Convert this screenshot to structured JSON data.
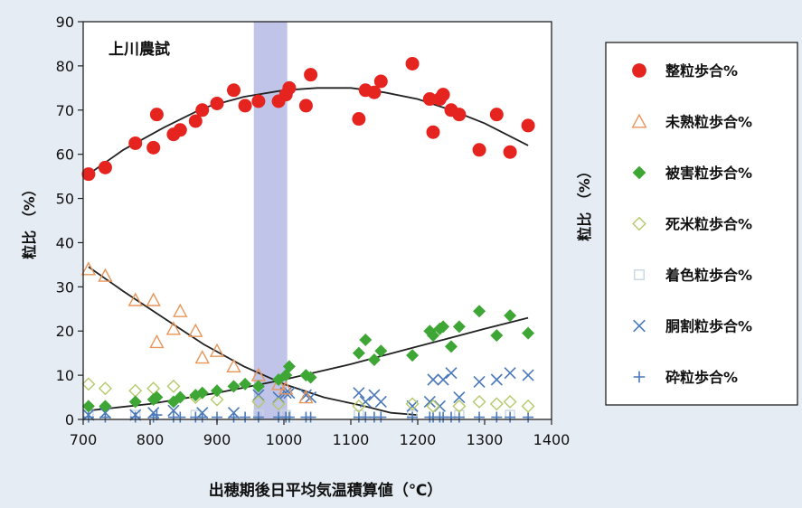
{
  "chart_data": {
    "type": "scatter",
    "annotation": "上川農試",
    "xlabel": "出穂期後日平均気温積算値（℃）",
    "ylabel_left": "粒比 （%）",
    "ylabel_right": "粒比 （%）",
    "xlim": [
      700,
      1400
    ],
    "ylim": [
      0,
      90
    ],
    "xticks": [
      "700",
      "800",
      "900",
      "1000",
      "1100",
      "1200",
      "1300",
      "1400"
    ],
    "yticks": [
      "0",
      "10",
      "20",
      "30",
      "40",
      "50",
      "60",
      "70",
      "80",
      "90"
    ],
    "highlight_band": [
      955,
      1005
    ],
    "grid": false,
    "legend_position": "right",
    "series": [
      {
        "name": "整粒歩合%",
        "marker": "circle-filled",
        "color": "#e52420",
        "points": [
          [
            708,
            55.5
          ],
          [
            733,
            57
          ],
          [
            778,
            62.5
          ],
          [
            805,
            61.5
          ],
          [
            810,
            69
          ],
          [
            835,
            64.5
          ],
          [
            845,
            65.5
          ],
          [
            868,
            67.5
          ],
          [
            878,
            70
          ],
          [
            900,
            71.5
          ],
          [
            925,
            74.5
          ],
          [
            942,
            71
          ],
          [
            962,
            72
          ],
          [
            992,
            72
          ],
          [
            1003,
            73.5
          ],
          [
            1008,
            75
          ],
          [
            1033,
            71
          ],
          [
            1040,
            78
          ],
          [
            1112,
            68
          ],
          [
            1122,
            74.5
          ],
          [
            1135,
            74
          ],
          [
            1145,
            76.5
          ],
          [
            1192,
            80.5
          ],
          [
            1218,
            72.5
          ],
          [
            1223,
            65
          ],
          [
            1233,
            72.5
          ],
          [
            1238,
            73.5
          ],
          [
            1250,
            70
          ],
          [
            1262,
            69
          ],
          [
            1292,
            61
          ],
          [
            1318,
            69
          ],
          [
            1338,
            60.5
          ],
          [
            1365,
            66.5
          ]
        ]
      },
      {
        "name": "未熟粒歩合%",
        "marker": "triangle-open",
        "color": "#e8955a",
        "points": [
          [
            708,
            34
          ],
          [
            733,
            32.5
          ],
          [
            778,
            27
          ],
          [
            805,
            27
          ],
          [
            810,
            17.5
          ],
          [
            835,
            20.5
          ],
          [
            845,
            24.5
          ],
          [
            868,
            20
          ],
          [
            878,
            14
          ],
          [
            900,
            15.5
          ],
          [
            925,
            12
          ],
          [
            962,
            10
          ],
          [
            992,
            8
          ],
          [
            1003,
            7
          ],
          [
            1033,
            5
          ]
        ]
      },
      {
        "name": "被害粒歩合%",
        "marker": "diamond-filled",
        "color": "#3ea635",
        "points": [
          [
            708,
            3
          ],
          [
            733,
            3
          ],
          [
            778,
            4
          ],
          [
            805,
            4.5
          ],
          [
            810,
            5
          ],
          [
            835,
            4
          ],
          [
            845,
            5
          ],
          [
            868,
            5.5
          ],
          [
            878,
            6
          ],
          [
            900,
            6.5
          ],
          [
            925,
            7.5
          ],
          [
            942,
            8
          ],
          [
            962,
            7.5
          ],
          [
            992,
            9
          ],
          [
            1003,
            10
          ],
          [
            1008,
            12
          ],
          [
            1033,
            10
          ],
          [
            1040,
            9.5
          ],
          [
            1112,
            15
          ],
          [
            1122,
            18
          ],
          [
            1135,
            13.5
          ],
          [
            1145,
            15.5
          ],
          [
            1192,
            14.5
          ],
          [
            1218,
            20
          ],
          [
            1223,
            19
          ],
          [
            1233,
            20.5
          ],
          [
            1238,
            21
          ],
          [
            1250,
            16.5
          ],
          [
            1262,
            21
          ],
          [
            1292,
            24.5
          ],
          [
            1318,
            19
          ],
          [
            1338,
            23.5
          ],
          [
            1365,
            19.5
          ]
        ]
      },
      {
        "name": "死米粒歩合%",
        "marker": "diamond-open",
        "color": "#b5c96a",
        "points": [
          [
            708,
            8
          ],
          [
            733,
            7
          ],
          [
            778,
            6.5
          ],
          [
            805,
            7
          ],
          [
            835,
            7.5
          ],
          [
            868,
            5
          ],
          [
            900,
            4.5
          ],
          [
            962,
            4
          ],
          [
            992,
            3.5
          ],
          [
            1112,
            3
          ],
          [
            1192,
            3.5
          ],
          [
            1223,
            3
          ],
          [
            1262,
            3
          ],
          [
            1292,
            4
          ],
          [
            1318,
            3.5
          ],
          [
            1338,
            4
          ],
          [
            1365,
            3
          ]
        ]
      },
      {
        "name": "着色粒歩合%",
        "marker": "square-open",
        "color": "#c9d6e2",
        "points": [
          [
            708,
            1
          ],
          [
            778,
            1
          ],
          [
            868,
            1
          ],
          [
            962,
            1
          ],
          [
            1003,
            1
          ],
          [
            1112,
            1
          ],
          [
            1192,
            1
          ],
          [
            1262,
            1
          ],
          [
            1338,
            1
          ]
        ]
      },
      {
        "name": "胴割粒歩合%",
        "marker": "x",
        "color": "#4a78b8",
        "points": [
          [
            708,
            1
          ],
          [
            733,
            1.5
          ],
          [
            778,
            1
          ],
          [
            805,
            1.5
          ],
          [
            835,
            2
          ],
          [
            878,
            1.5
          ],
          [
            925,
            1.5
          ],
          [
            962,
            5.5
          ],
          [
            992,
            5
          ],
          [
            1003,
            6
          ],
          [
            1008,
            6
          ],
          [
            1033,
            5.5
          ],
          [
            1040,
            5
          ],
          [
            1112,
            6
          ],
          [
            1122,
            4
          ],
          [
            1135,
            5.5
          ],
          [
            1145,
            4
          ],
          [
            1192,
            3
          ],
          [
            1218,
            4
          ],
          [
            1223,
            9
          ],
          [
            1233,
            3
          ],
          [
            1238,
            9
          ],
          [
            1250,
            10.5
          ],
          [
            1262,
            5
          ],
          [
            1292,
            8.5
          ],
          [
            1318,
            9
          ],
          [
            1338,
            10.5
          ],
          [
            1365,
            10
          ]
        ]
      },
      {
        "name": "砕粒歩合%",
        "marker": "plus",
        "color": "#4a78b8",
        "points": [
          [
            708,
            0.5
          ],
          [
            733,
            0.5
          ],
          [
            778,
            0.5
          ],
          [
            805,
            0.5
          ],
          [
            810,
            1
          ],
          [
            835,
            0.5
          ],
          [
            845,
            0.5
          ],
          [
            868,
            0.5
          ],
          [
            878,
            0.5
          ],
          [
            900,
            0.5
          ],
          [
            925,
            0.5
          ],
          [
            942,
            0.5
          ],
          [
            962,
            0.5
          ],
          [
            992,
            0.5
          ],
          [
            1003,
            0.5
          ],
          [
            1008,
            0.5
          ],
          [
            1033,
            0.5
          ],
          [
            1040,
            0.5
          ],
          [
            1112,
            0.5
          ],
          [
            1122,
            0.5
          ],
          [
            1135,
            0.5
          ],
          [
            1145,
            0.5
          ],
          [
            1192,
            0.5
          ],
          [
            1218,
            0.5
          ],
          [
            1223,
            0.5
          ],
          [
            1233,
            0.5
          ],
          [
            1238,
            0.5
          ],
          [
            1250,
            0.5
          ],
          [
            1262,
            0.5
          ],
          [
            1292,
            0.5
          ],
          [
            1318,
            0.5
          ],
          [
            1338,
            0.5
          ],
          [
            1365,
            0.5
          ]
        ]
      }
    ],
    "trendlines": [
      {
        "series": "整粒歩合%",
        "points": [
          [
            708,
            55.5
          ],
          [
            760,
            61
          ],
          [
            820,
            66
          ],
          [
            880,
            70.5
          ],
          [
            940,
            73
          ],
          [
            1000,
            74.5
          ],
          [
            1050,
            75
          ],
          [
            1100,
            75
          ],
          [
            1150,
            74
          ],
          [
            1200,
            72.5
          ],
          [
            1250,
            70
          ],
          [
            1300,
            67
          ],
          [
            1365,
            62
          ]
        ]
      },
      {
        "series": "未熟粒歩合%",
        "points": [
          [
            708,
            34.5
          ],
          [
            760,
            29
          ],
          [
            820,
            23
          ],
          [
            880,
            17
          ],
          [
            940,
            12
          ],
          [
            1000,
            8
          ],
          [
            1060,
            5
          ],
          [
            1120,
            3
          ],
          [
            1160,
            1.5
          ],
          [
            1200,
            1
          ]
        ]
      },
      {
        "series": "被害粒歩合%",
        "points": [
          [
            708,
            2
          ],
          [
            800,
            3.5
          ],
          [
            900,
            6
          ],
          [
            1000,
            9
          ],
          [
            1100,
            12.5
          ],
          [
            1200,
            16.5
          ],
          [
            1300,
            20.5
          ],
          [
            1365,
            23
          ]
        ]
      }
    ]
  }
}
